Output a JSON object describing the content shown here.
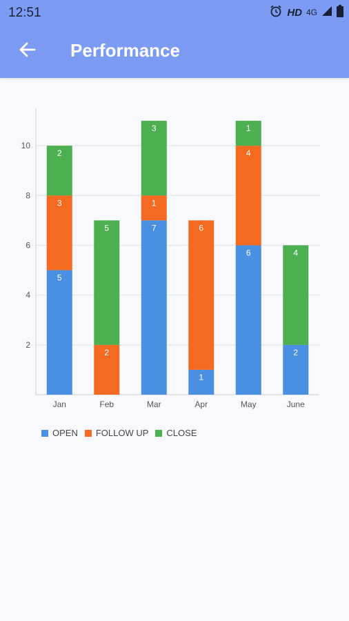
{
  "status": {
    "time": "12:51",
    "hd": "HD",
    "network": "4G"
  },
  "header": {
    "title": "Performance"
  },
  "icons": {
    "back": "arrow-left-icon",
    "alarm": "alarm-icon",
    "signal": "signal-icon",
    "battery": "battery-icon"
  },
  "colors": {
    "open": "#4a90e2",
    "follow_up": "#f56a21",
    "close": "#4caf50",
    "header": "#7b9cf2"
  },
  "chart_data": {
    "type": "bar",
    "stacked": true,
    "categories": [
      "Jan",
      "Feb",
      "Mar",
      "Apr",
      "May",
      "June"
    ],
    "series": [
      {
        "name": "OPEN",
        "values": [
          5,
          0,
          7,
          1,
          6,
          2
        ]
      },
      {
        "name": "FOLLOW UP",
        "values": [
          3,
          2,
          1,
          6,
          4,
          0
        ]
      },
      {
        "name": "CLOSE",
        "values": [
          2,
          5,
          3,
          0,
          1,
          4
        ]
      }
    ],
    "yticks": [
      2,
      4,
      6,
      8,
      10
    ],
    "ylim": [
      0,
      11.5
    ],
    "grid": true,
    "legend": "bottom-left"
  },
  "legend": {
    "items": [
      "OPEN",
      "FOLLOW UP",
      "CLOSE"
    ]
  }
}
